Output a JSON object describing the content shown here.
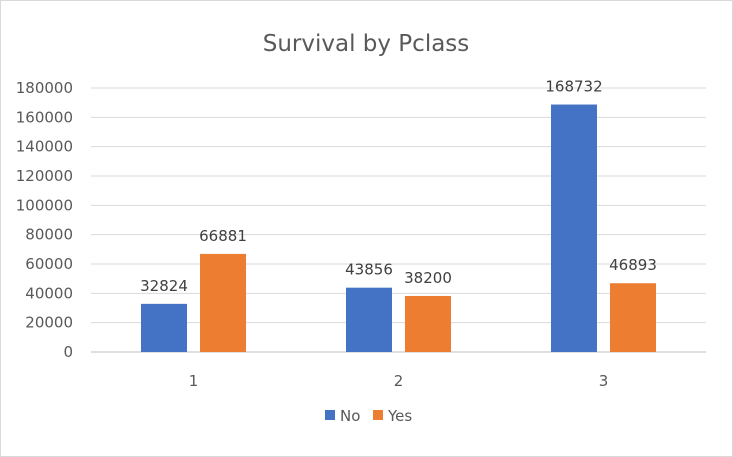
{
  "chart_data": {
    "type": "bar",
    "title": "Survival by Pclass",
    "xlabel": "",
    "ylabel": "",
    "categories": [
      "1",
      "2",
      "3"
    ],
    "series": [
      {
        "name": "No",
        "color": "#4472c4",
        "values": [
          32824,
          43856,
          168732
        ]
      },
      {
        "name": "Yes",
        "color": "#ed7d31",
        "values": [
          66881,
          38200,
          46893
        ]
      }
    ],
    "ylim": [
      0,
      180000
    ],
    "yticks": [
      "0",
      "20000",
      "40000",
      "60000",
      "80000",
      "100000",
      "120000",
      "140000",
      "160000",
      "180000"
    ],
    "grid": true,
    "legend_position": "bottom",
    "data_labels": true
  }
}
